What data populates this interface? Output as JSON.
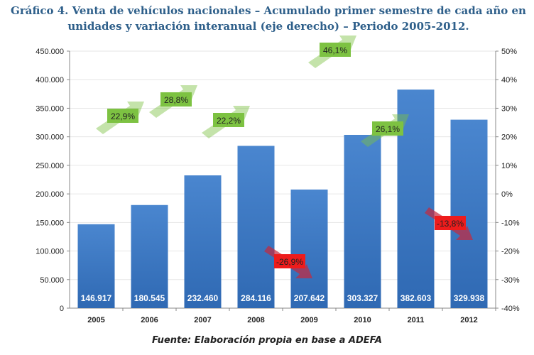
{
  "chart_data": {
    "type": "bar",
    "title": "Gráfico 4. Venta de vehículos nacionales – Acumulado primer semestre de cada año en unidades y variación interanual (eje derecho) – Periodo  2005-2012.",
    "categories": [
      "2005",
      "2006",
      "2007",
      "2008",
      "2009",
      "2010",
      "2011",
      "2012"
    ],
    "values": [
      146917,
      180545,
      232460,
      284116,
      207642,
      303327,
      382603,
      329938
    ],
    "value_labels": [
      "146.917",
      "180.545",
      "232.460",
      "284.116",
      "207.642",
      "303.327",
      "382.603",
      "329.938"
    ],
    "variation_labels": [
      "22,9%",
      "28,8%",
      "22,2%",
      "-26,9%",
      "46,1%",
      "26,1%",
      "-13,8%"
    ],
    "variation_years": [
      "2006",
      "2007",
      "2008",
      "2009",
      "2010",
      "2011",
      "2012"
    ],
    "ylim": [
      0,
      450000
    ],
    "yticks": [
      "0",
      "50.000",
      "100.000",
      "150.000",
      "200.000",
      "250.000",
      "300.000",
      "350.000",
      "400.000",
      "450.000"
    ],
    "y2lim": [
      -40,
      50
    ],
    "y2ticks": [
      "-40%",
      "-30%",
      "-20%",
      "-10%",
      "0%",
      "10%",
      "20%",
      "30%",
      "40%",
      "50%"
    ],
    "grid": true,
    "colors": {
      "bar": "#3a78c4",
      "up": "#7dc242",
      "down": "#ee1c1c"
    },
    "source": "Fuente: Elaboración propia en base a ADEFA"
  }
}
